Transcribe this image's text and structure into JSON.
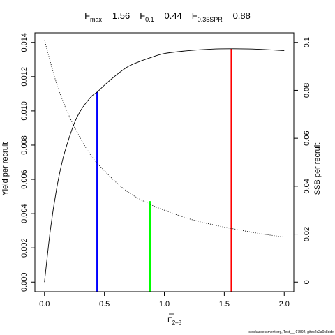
{
  "chart_data": {
    "type": "line",
    "title_parts": [
      {
        "main": "F",
        "sub": "max",
        "rest": " = 1.56"
      },
      {
        "main": "F",
        "sub": "0.1",
        "rest": " = 0.44"
      },
      {
        "main": "F",
        "sub": "0.35SPR",
        "rest": " = 0.88"
      }
    ],
    "xlabel": {
      "main": "F",
      "sub": "2–8"
    },
    "ylabel_left": "Yield per recruit",
    "ylabel_right": "SSB per recruit",
    "footnote": "stockassessment.org, Test_l_r17592, gitec2c2a0c8dde",
    "x_range": [
      0,
      2
    ],
    "y_left_range": [
      0,
      0.014
    ],
    "y_right_range": [
      0,
      0.1
    ],
    "x_ticks": [
      0.0,
      0.5,
      1.0,
      1.5,
      2.0
    ],
    "x_tick_labels": [
      "0.0",
      "0.5",
      "1.0",
      "1.5",
      "2.0"
    ],
    "y_left_ticks": [
      0.0,
      0.002,
      0.004,
      0.006,
      0.008,
      0.01,
      0.012,
      0.014
    ],
    "y_left_tick_labels": [
      "0.000",
      "0.002",
      "0.004",
      "0.006",
      "0.008",
      "0.010",
      "0.012",
      "0.014"
    ],
    "y_right_ticks": [
      0.0,
      0.02,
      0.04,
      0.06,
      0.08,
      0.1
    ],
    "y_right_tick_labels": [
      "0",
      "0.02",
      "0.04",
      "0.06",
      "0.08",
      "0.1"
    ],
    "series": [
      {
        "name": "",
        "axis": "left",
        "style": "solid",
        "color": "#000000",
        "x": [
          0.0,
          0.05,
          0.1,
          0.15,
          0.2,
          0.25,
          0.3,
          0.35,
          0.4,
          0.44,
          0.5,
          0.6,
          0.7,
          0.8,
          0.88,
          1.0,
          1.2,
          1.4,
          1.56,
          1.7,
          1.85,
          2.0
        ],
        "y": [
          0.0,
          0.0031,
          0.0054,
          0.0071,
          0.0083,
          0.0093,
          0.01,
          0.0105,
          0.0109,
          0.0111,
          0.0115,
          0.0121,
          0.0126,
          0.0129,
          0.0131,
          0.01335,
          0.01352,
          0.01361,
          0.01363,
          0.01362,
          0.01358,
          0.01352
        ]
      },
      {
        "name": "",
        "axis": "right",
        "style": "dotted",
        "color": "#000000",
        "x": [
          0.0,
          0.1,
          0.2,
          0.3,
          0.4,
          0.5,
          0.6,
          0.7,
          0.8,
          0.9,
          1.0,
          1.2,
          1.4,
          1.6,
          1.8,
          2.0
        ],
        "y": [
          0.101,
          0.083,
          0.07,
          0.06,
          0.052,
          0.0465,
          0.0415,
          0.0375,
          0.0345,
          0.032,
          0.03,
          0.0265,
          0.024,
          0.022,
          0.0202,
          0.0188
        ]
      }
    ],
    "reference_lines": [
      {
        "name": "F0.1",
        "x": 0.44,
        "axis": "left",
        "y_top": 0.0111,
        "color": "#0000ff"
      },
      {
        "name": "F0.35SPR",
        "x": 0.88,
        "axis": "right",
        "y_top": 0.0338,
        "color": "#00ff00"
      },
      {
        "name": "Fmax",
        "x": 1.56,
        "axis": "left",
        "y_top": 0.01363,
        "color": "#ff0000"
      }
    ]
  }
}
